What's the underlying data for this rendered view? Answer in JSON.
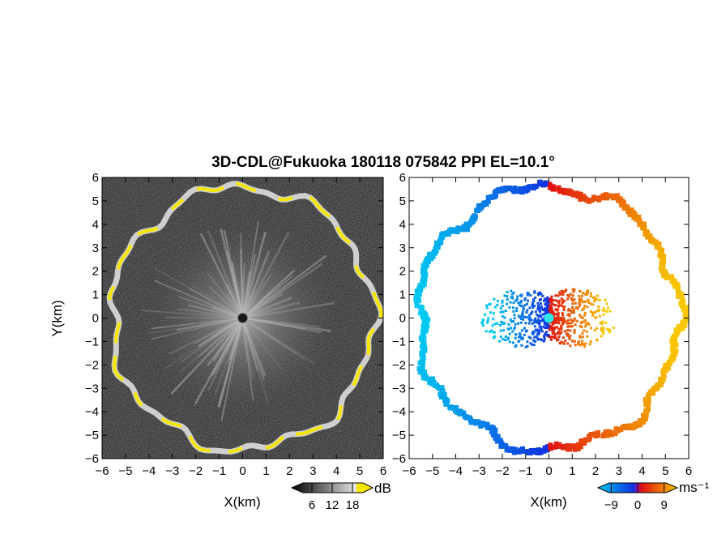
{
  "chart_data": {
    "title": "3D-CDL@Fukuoka 180118 075842 PPI EL=10.1°",
    "panels": [
      {
        "type": "heatmap",
        "field": "reflectivity",
        "xlabel": "X(km)",
        "ylabel": "Y(km)",
        "xlim": [
          -6,
          6
        ],
        "ylim": [
          -6,
          6
        ],
        "xticks": [
          -6,
          -5,
          -4,
          -3,
          -2,
          -1,
          0,
          1,
          2,
          3,
          4,
          5,
          6
        ],
        "yticks": [
          -6,
          -5,
          -4,
          -3,
          -2,
          -1,
          0,
          1,
          2,
          3,
          4,
          5,
          6
        ],
        "colormap": "grayscale with yellow maximum",
        "colorbar": {
          "unit": "dB",
          "ticks": [
            6,
            12,
            18
          ],
          "range": [
            0,
            24
          ]
        },
        "ring_radius_km": 5.6
      },
      {
        "type": "heatmap",
        "field": "doppler velocity",
        "xlabel": "X(km)",
        "ylabel": "",
        "xlim": [
          -6,
          6
        ],
        "ylim": [
          -6,
          6
        ],
        "xticks": [
          -6,
          -5,
          -4,
          -3,
          -2,
          -1,
          0,
          1,
          2,
          3,
          4,
          5,
          6
        ],
        "yticks": [
          -6,
          -5,
          -4,
          -3,
          -2,
          -1,
          0,
          1,
          2,
          3,
          4,
          5,
          6
        ],
        "colormap": "cyan-blue (negative) to red-yellow (positive)",
        "colorbar": {
          "unit": "ms⁻¹",
          "ticks": [
            -9,
            0,
            9
          ],
          "range": [
            -13.5,
            13.5
          ]
        },
        "ring_radius_km": 5.6
      }
    ]
  },
  "colors": {
    "ring_max": "#f5e600",
    "ring_gray": "#d0d0d0",
    "bg_dark": "#2a2a2a",
    "vel_neg_far": "#00c8f0",
    "vel_neg_near": "#1030e0",
    "vel_pos_near": "#e01010",
    "vel_pos_far": "#f8c800",
    "radar_marker": "#30e8e8"
  }
}
